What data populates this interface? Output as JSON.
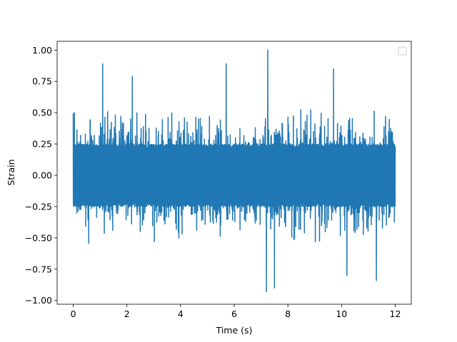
{
  "chart_data": {
    "type": "line",
    "title": "",
    "xlabel": "Time (s)",
    "ylabel": "Strain",
    "xlim": [
      -0.6,
      12.6
    ],
    "ylim": [
      -1.03,
      1.07
    ],
    "x_ticks": [
      0,
      2,
      4,
      6,
      8,
      10,
      12
    ],
    "x_tick_labels": [
      "0",
      "2",
      "4",
      "6",
      "8",
      "10",
      "12"
    ],
    "y_ticks": [
      -1.0,
      -0.75,
      -0.5,
      -0.25,
      0.0,
      0.25,
      0.5,
      0.75,
      1.0
    ],
    "y_tick_labels": [
      "−1.00",
      "−0.75",
      "−0.50",
      "−0.25",
      "0.00",
      "0.25",
      "0.50",
      "0.75",
      "1.00"
    ],
    "grid": false,
    "legend": {
      "placement": "top-right",
      "entries": []
    },
    "series": [
      {
        "color": "#1f77b4",
        "x_range": [
          0,
          12
        ],
        "description_peaks": [
          {
            "x": 1.1,
            "y": 0.89
          },
          {
            "x": 7.25,
            "y": 1.0
          },
          {
            "x": 7.2,
            "y": -0.93
          },
          {
            "x": 7.5,
            "y": -0.9
          },
          {
            "x": 10.2,
            "y": -0.8
          },
          {
            "x": 11.3,
            "y": -0.84
          },
          {
            "x": 2.2,
            "y": 0.79
          },
          {
            "x": 5.7,
            "y": 0.89
          },
          {
            "x": 9.7,
            "y": 0.85
          }
        ],
        "typical_range": [
          -0.55,
          0.55
        ]
      }
    ]
  }
}
